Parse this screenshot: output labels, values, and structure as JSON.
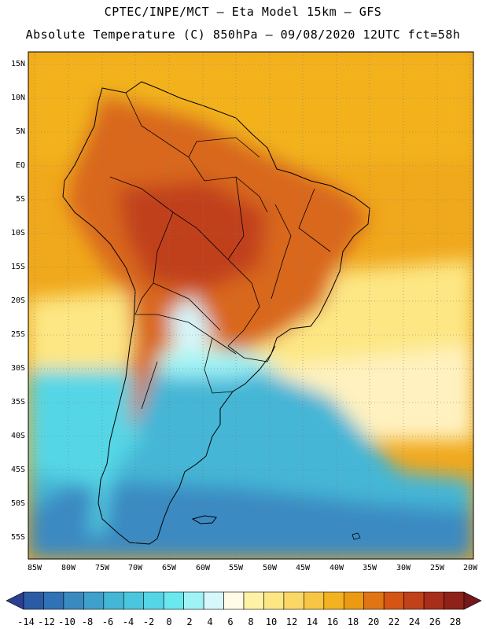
{
  "header": {
    "line1": "CPTEC/INPE/MCT –  Eta Model 15km – GFS",
    "line2": "Absolute Temperature (C) 850hPa – 09/08/2020 12UTC fct=58h"
  },
  "map": {
    "lat_labels": [
      "15N",
      "10N",
      "5N",
      "EQ",
      "5S",
      "10S",
      "15S",
      "20S",
      "25S",
      "30S",
      "35S",
      "40S",
      "45S",
      "50S",
      "55S"
    ],
    "lon_labels": [
      "85W",
      "80W",
      "75W",
      "70W",
      "65W",
      "60W",
      "55W",
      "50W",
      "45W",
      "40W",
      "35W",
      "30W",
      "25W",
      "20W"
    ],
    "colors": {
      "land_warm": "#d9671a",
      "ocean_warm": "#f0a81c",
      "southern_ocean": "#4fc3e0"
    }
  },
  "colorbar": {
    "labels": [
      "-14",
      "-12",
      "-10",
      "-8",
      "-6",
      "-4",
      "-2",
      "0",
      "2",
      "4",
      "6",
      "8",
      "10",
      "12",
      "14",
      "16",
      "18",
      "20",
      "22",
      "24",
      "26",
      "28"
    ],
    "colors": [
      "#2a3f8f",
      "#2c5ba6",
      "#2f72b5",
      "#3a8ac2",
      "#3fa0cc",
      "#44b6d6",
      "#4ac7de",
      "#55d6e6",
      "#6ae8ef",
      "#9ff3f5",
      "#d6f7fb",
      "#fffbe6",
      "#fff2a6",
      "#fde784",
      "#fbd766",
      "#f8c545",
      "#f3b21f",
      "#eb9a12",
      "#e17413",
      "#d45514",
      "#c1411a",
      "#a82d1a",
      "#8e2218",
      "#74171a"
    ]
  }
}
